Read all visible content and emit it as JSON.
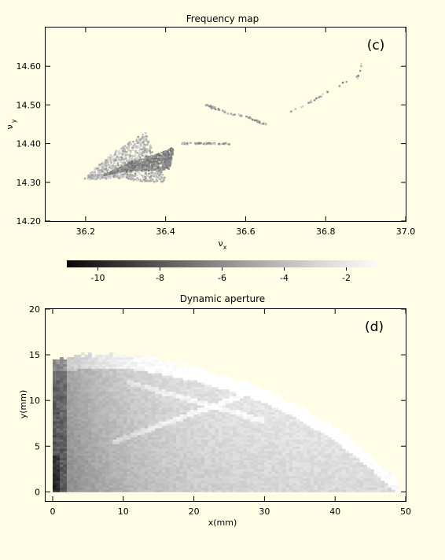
{
  "colors": {
    "background": "#fffde6",
    "axis": "#000000"
  },
  "chart_data": [
    {
      "type": "scatter",
      "title": "Frequency map",
      "panel_label": "(c)",
      "xlabel": "ν_x",
      "xlabel_main": "ν",
      "xlabel_sub": "x",
      "ylabel": "ν_y",
      "ylabel_main": "ν",
      "ylabel_sub": "y",
      "xlim": [
        36.1,
        37.0
      ],
      "ylim": [
        14.2,
        14.7
      ],
      "xticks": [
        "36.2",
        "36.4",
        "36.6",
        "36.8",
        "37.0"
      ],
      "yticks": [
        "14.20",
        "14.30",
        "14.40",
        "14.50",
        "14.60"
      ],
      "grid": false,
      "color_scale": "log10 diffusion (black = -10, white = -1)",
      "series": [
        {
          "region": "left fan arm (from apex at 36.20,14.31 toward 36.36,14.44)",
          "points": [
            [
              36.2,
              14.31
            ],
            [
              36.23,
              14.34
            ],
            [
              36.26,
              14.37
            ],
            [
              36.29,
              14.39
            ],
            [
              36.32,
              14.41
            ],
            [
              36.35,
              14.43
            ]
          ]
        },
        {
          "region": "dense diagonal band (36.28,14.33 to 36.40,14.38)",
          "points": [
            [
              36.28,
              14.33
            ],
            [
              36.31,
              14.35
            ],
            [
              36.34,
              14.36
            ],
            [
              36.37,
              14.37
            ],
            [
              36.4,
              14.38
            ],
            [
              36.42,
              14.39
            ]
          ]
        },
        {
          "region": "lower arc (36.22,14.31 to 36.40,14.30)",
          "points": [
            [
              36.22,
              14.31
            ],
            [
              36.26,
              14.31
            ],
            [
              36.3,
              14.31
            ],
            [
              36.34,
              14.3
            ],
            [
              36.38,
              14.3
            ],
            [
              36.4,
              14.3
            ]
          ]
        },
        {
          "region": "horizontal line near 14.40",
          "points": [
            [
              36.44,
              14.4
            ],
            [
              36.48,
              14.4
            ],
            [
              36.52,
              14.4
            ],
            [
              36.56,
              14.4
            ]
          ]
        },
        {
          "region": "resonance line (36.50,14.50 to 36.65,14.45)",
          "points": [
            [
              36.5,
              14.5
            ],
            [
              36.55,
              14.48
            ],
            [
              36.6,
              14.47
            ],
            [
              36.65,
              14.45
            ]
          ]
        },
        {
          "region": "sparse upper diagonal (36.70,14.48 to 36.88,14.57)",
          "points": [
            [
              36.7,
              14.48
            ],
            [
              36.75,
              14.5
            ],
            [
              36.8,
              14.53
            ],
            [
              36.85,
              14.56
            ],
            [
              36.88,
              14.57
            ],
            [
              36.89,
              14.61
            ]
          ]
        }
      ]
    },
    {
      "type": "colorbar",
      "min": -11,
      "max": -1,
      "ticks": [
        "-10",
        "-8",
        "-6",
        "-4",
        "-2"
      ],
      "tick_values": [
        -10,
        -8,
        -6,
        -4,
        -2
      ]
    },
    {
      "type": "heatmap",
      "title": "Dynamic aperture",
      "panel_label": "(d)",
      "xlabel": "x(mm)",
      "ylabel": "y(mm)",
      "xlim": [
        -1,
        50
      ],
      "ylim": [
        -1,
        20
      ],
      "xticks": [
        "0",
        "10",
        "20",
        "30",
        "40",
        "50"
      ],
      "yticks": [
        "0",
        "5",
        "10",
        "15",
        "20"
      ],
      "grid": false,
      "boundary_mm": [
        [
          0,
          14.5
        ],
        [
          5,
          14.9
        ],
        [
          10,
          14.9
        ],
        [
          15,
          14.3
        ],
        [
          20,
          13.5
        ],
        [
          25,
          12.4
        ],
        [
          30,
          11.1
        ],
        [
          35,
          9.2
        ],
        [
          40,
          6.8
        ],
        [
          45,
          3.8
        ],
        [
          48,
          1.6
        ],
        [
          49,
          0
        ]
      ],
      "value_range": [
        -11,
        -1
      ]
    }
  ]
}
